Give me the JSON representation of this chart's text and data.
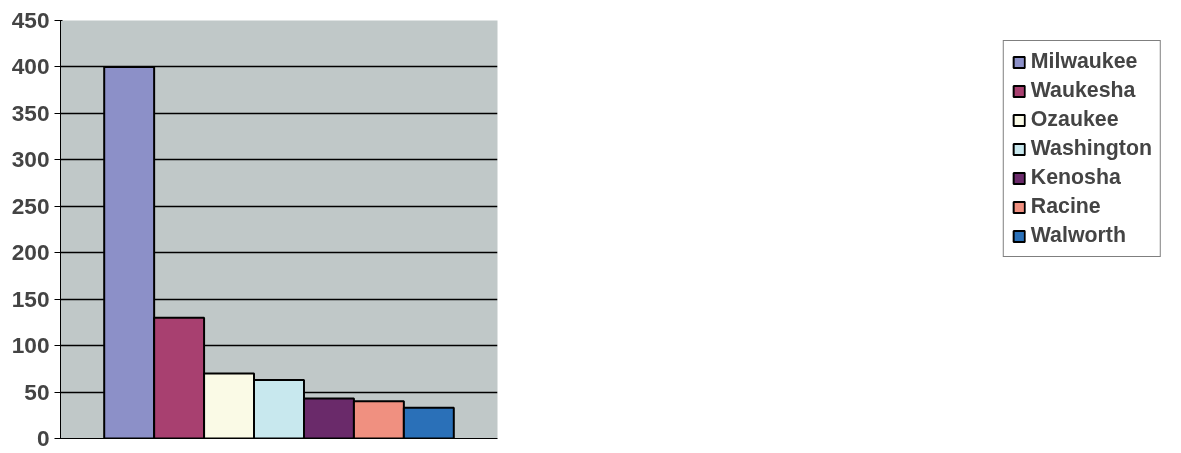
{
  "chart_data": {
    "type": "bar",
    "categories": [
      null
    ],
    "series": [
      {
        "name": "Milwaukee",
        "color": "#8c90c8",
        "values": [
          400
        ]
      },
      {
        "name": "Waukesha",
        "color": "#a84070",
        "values": [
          130
        ]
      },
      {
        "name": "Ozaukee",
        "color": "#fafae6",
        "values": [
          70
        ]
      },
      {
        "name": "Washington",
        "color": "#c8e8ee",
        "values": [
          63
        ]
      },
      {
        "name": "Kenosha",
        "color": "#6a2a6a",
        "values": [
          43
        ]
      },
      {
        "name": "Racine",
        "color": "#f09080",
        "values": [
          40
        ]
      },
      {
        "name": "Walworth",
        "color": "#2a70b8",
        "values": [
          33
        ]
      }
    ],
    "ylim": [
      0,
      450
    ],
    "yticks": [
      0,
      50,
      100,
      150,
      200,
      250,
      300,
      350,
      400,
      450
    ],
    "grid": "y",
    "legend": "right"
  }
}
